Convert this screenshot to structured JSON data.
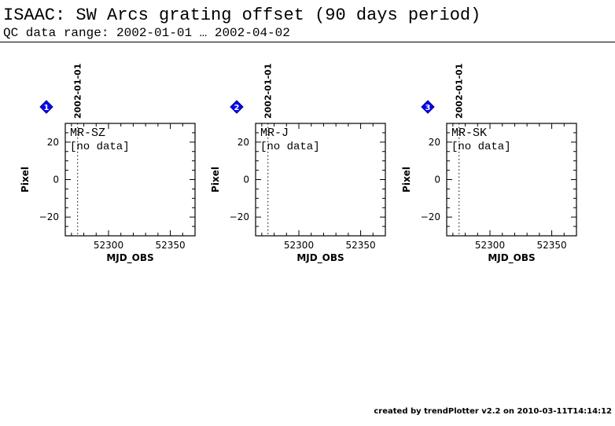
{
  "header": {
    "title": "ISAAC: SW Arcs grating offset (90 days period)",
    "subtitle": "QC data range: 2002-01-01 … 2002-04-02"
  },
  "footer": {
    "text": "created by trendPlotter v2.2 on 2010-03-11T14:14:12"
  },
  "marker_color": "#0000ff",
  "chart_data": [
    {
      "type": "scatter",
      "panel_number": "1",
      "label": "MR-SZ",
      "status": "[no data]",
      "date_marker": {
        "label": "2002-01-01",
        "x": 52275
      },
      "xlabel": "MJD_OBS",
      "ylabel": "Pixel",
      "xlim": [
        52265,
        52370
      ],
      "ylim": [
        -30,
        30
      ],
      "xticks": [
        52300,
        52350
      ],
      "yticks": [
        20,
        0,
        -20
      ],
      "series": [
        {
          "values": []
        }
      ]
    },
    {
      "type": "scatter",
      "panel_number": "2",
      "label": "MR-J",
      "status": "[no data]",
      "date_marker": {
        "label": "2002-01-01",
        "x": 52275
      },
      "xlabel": "MJD_OBS",
      "ylabel": "Pixel",
      "xlim": [
        52265,
        52370
      ],
      "ylim": [
        -30,
        30
      ],
      "xticks": [
        52300,
        52350
      ],
      "yticks": [
        20,
        0,
        -20
      ],
      "series": [
        {
          "values": []
        }
      ]
    },
    {
      "type": "scatter",
      "panel_number": "3",
      "label": "MR-SK",
      "status": "[no data]",
      "date_marker": {
        "label": "2002-01-01",
        "x": 52275
      },
      "xlabel": "MJD_OBS",
      "ylabel": "Pixel",
      "xlim": [
        52265,
        52370
      ],
      "ylim": [
        -30,
        30
      ],
      "xticks": [
        52300,
        52350
      ],
      "yticks": [
        20,
        0,
        -20
      ],
      "series": [
        {
          "values": []
        }
      ]
    }
  ]
}
